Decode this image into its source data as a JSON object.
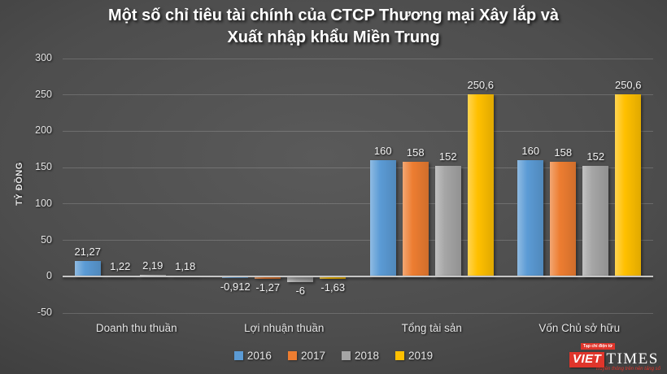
{
  "title": {
    "lines": [
      "Một số chỉ tiêu tài chính của CTCP Thương mại Xây lắp và",
      "Xuất nhập khẩu Miền Trung"
    ]
  },
  "chart_data": {
    "type": "bar",
    "categories": [
      "Doanh thu thuần",
      "Lợi nhuận thuần",
      "Tổng tài sản",
      "Vốn Chủ sở hữu"
    ],
    "series": [
      {
        "name": "2016",
        "color": "#5B9BD5",
        "values": [
          21.27,
          -0.912,
          160,
          160
        ],
        "labels": [
          "21,27",
          "-0,912",
          "160",
          "160"
        ]
      },
      {
        "name": "2017",
        "color": "#ED7D31",
        "values": [
          1.22,
          -1.27,
          158,
          158
        ],
        "labels": [
          "1,22",
          "-1,27",
          "158",
          "158"
        ]
      },
      {
        "name": "2018",
        "color": "#A5A5A5",
        "values": [
          2.19,
          -6,
          152,
          152
        ],
        "labels": [
          "2,19",
          "-6",
          "152",
          "152"
        ]
      },
      {
        "name": "2019",
        "color": "#FFC000",
        "values": [
          1.18,
          -1.63,
          250.6,
          250.6
        ],
        "labels": [
          "1,18",
          "-1,63",
          "250,6",
          "250,6"
        ]
      }
    ],
    "xlabel": "",
    "ylabel": "TỶ ĐỒNG",
    "y_ticks": [
      300,
      250,
      200,
      150,
      100,
      50,
      0,
      -50
    ],
    "ylim": [
      -50,
      300
    ],
    "grid": true,
    "legend_position": "bottom"
  },
  "logo": {
    "tagline_top": "Tạp chí điện tử",
    "brand_left": "VIET",
    "brand_right": "TIMES",
    "tagline_bottom": "Truyền thông trên nền tảng số"
  }
}
